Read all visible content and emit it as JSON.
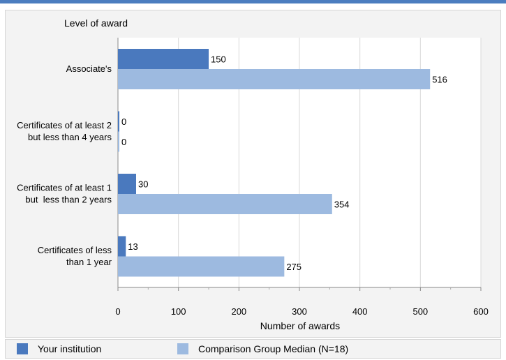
{
  "chart_data": {
    "type": "bar",
    "orientation": "horizontal",
    "title": "Level of award",
    "xlabel": "Number of awards",
    "ylabel": "Level of award",
    "xlim": [
      0,
      600
    ],
    "xticks": [
      0,
      100,
      200,
      300,
      400,
      500,
      600
    ],
    "grid": true,
    "legend_position": "bottom",
    "categories": [
      [
        "Associate's"
      ],
      [
        "Certificates of at least 2",
        "but less than 4 years"
      ],
      [
        "Certificates of at least 1",
        "but  less than 2 years"
      ],
      [
        "Certificates of less",
        "than 1 year"
      ]
    ],
    "series": [
      {
        "name": "Your institution",
        "color": "#4a79be",
        "values": [
          150,
          0,
          30,
          13
        ]
      },
      {
        "name": "Comparison Group Median (N=18)",
        "color": "#9dbae0",
        "values": [
          516,
          0,
          354,
          275
        ]
      }
    ]
  }
}
